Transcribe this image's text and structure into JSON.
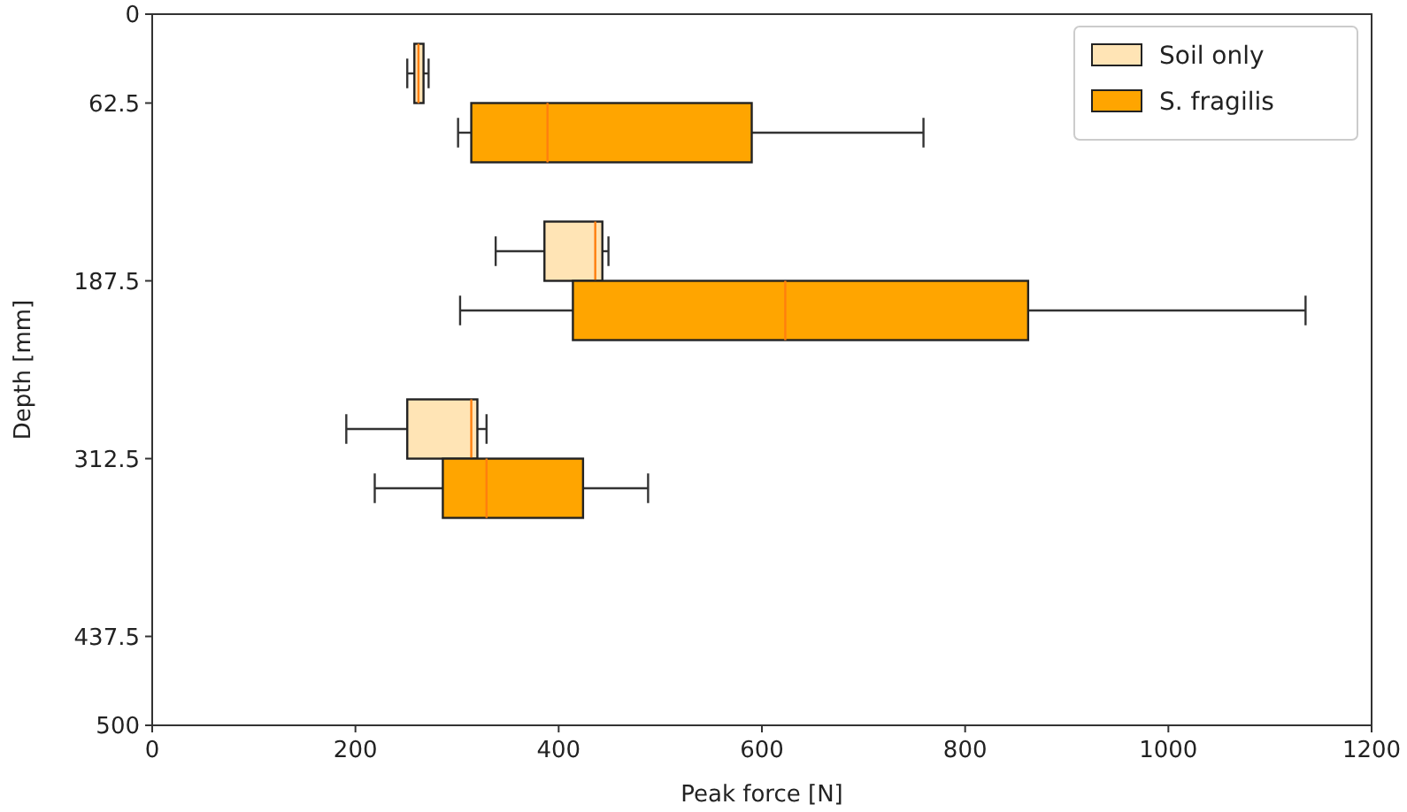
{
  "chart_data": {
    "type": "box",
    "orientation": "horizontal",
    "xlabel": "Peak force [N]",
    "ylabel": "Depth [mm]",
    "xlim": [
      0,
      1200
    ],
    "xticks": [
      0,
      200,
      400,
      600,
      800,
      1000,
      1200
    ],
    "ylim": [
      500,
      0
    ],
    "yticks": [
      0,
      62.5,
      187.5,
      312.5,
      437.5,
      500
    ],
    "legend": "top right",
    "series": [
      {
        "name": "Soil only",
        "color": "#ffe4b5",
        "x": [
          41.67,
          166.67,
          291.67
        ],
        "boxes": [
          {
            "low": 251,
            "q1": 258,
            "median": 262,
            "q3": 267,
            "high": 272
          },
          {
            "low": 338,
            "q1": 386,
            "median": 436,
            "q3": 443,
            "high": 449
          },
          {
            "low": 191,
            "q1": 251,
            "median": 314,
            "q3": 320,
            "high": 329
          }
        ]
      },
      {
        "name": "S. fragilis",
        "color": "#ffa500",
        "x": [
          83.33,
          208.33,
          333.33
        ],
        "boxes": [
          {
            "low": 301,
            "q1": 314,
            "median": 389,
            "q3": 590,
            "high": 759
          },
          {
            "low": 303,
            "q1": 414,
            "median": 623,
            "q3": 862,
            "high": 1135
          },
          {
            "low": 219,
            "q1": 286,
            "median": 329,
            "q3": 424,
            "high": 488
          }
        ]
      }
    ]
  }
}
